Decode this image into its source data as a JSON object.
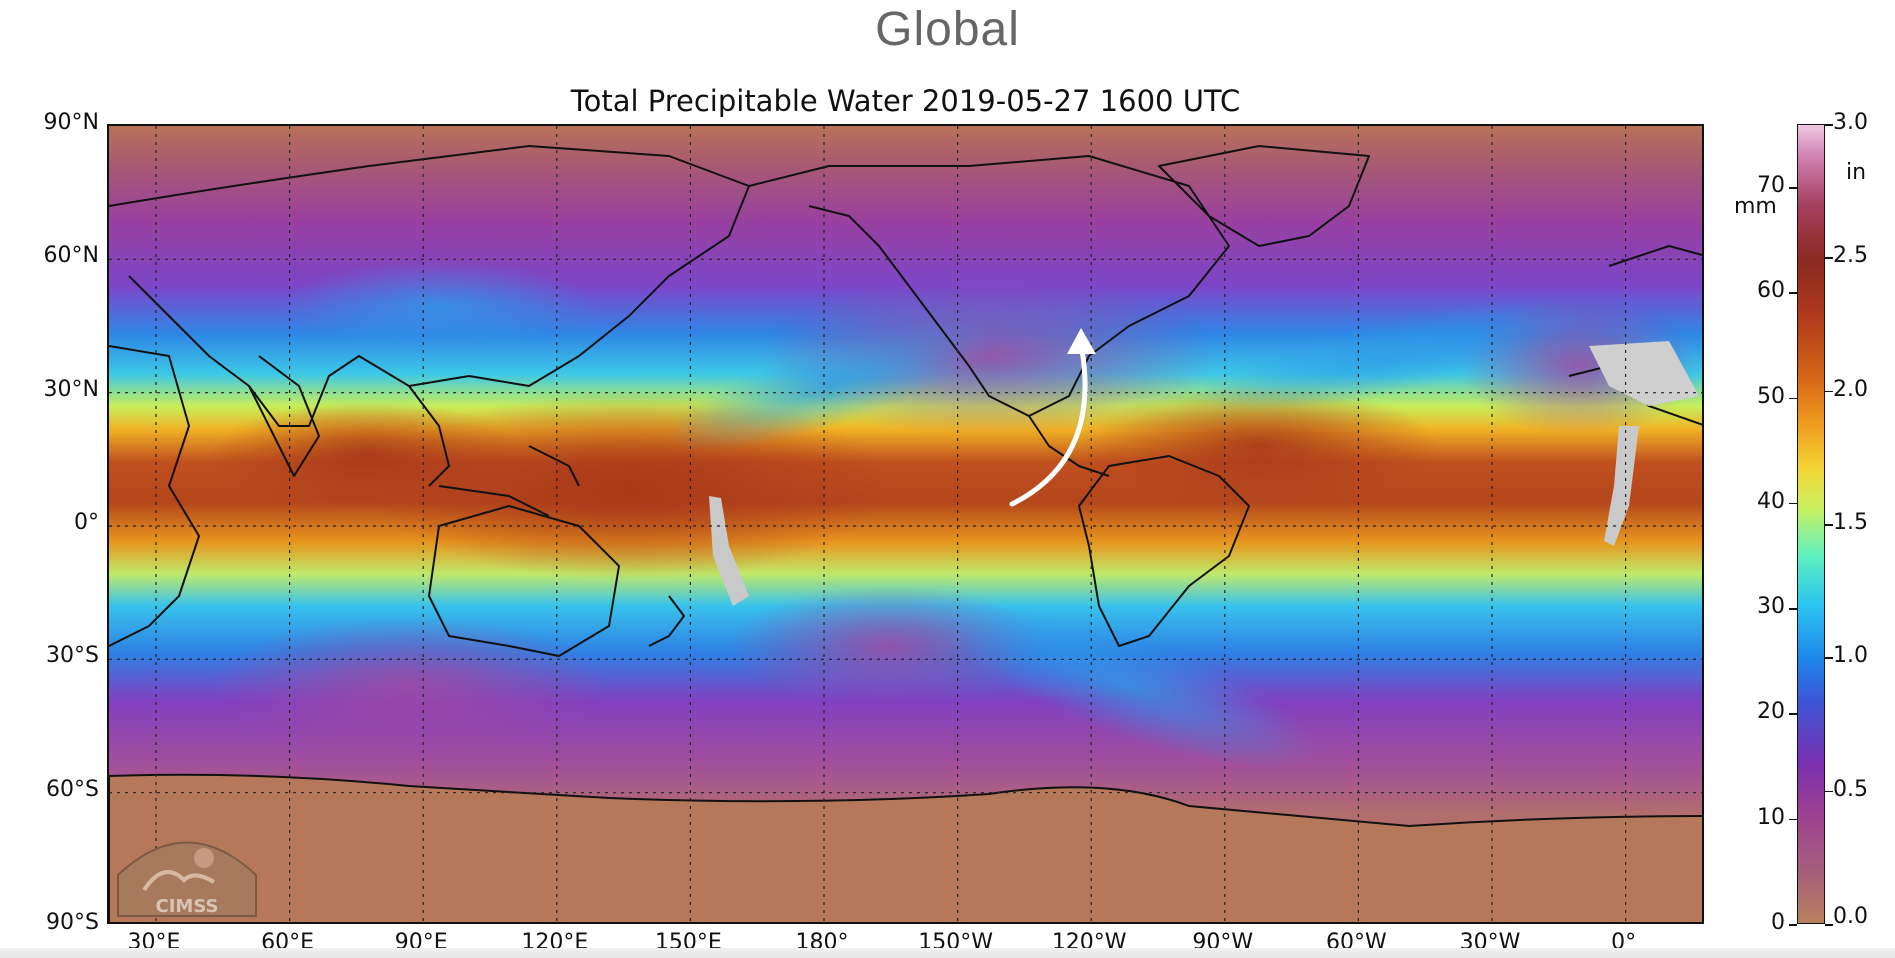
{
  "header": {
    "section_title": "Global"
  },
  "plot": {
    "title": "Total Precipitable Water  2019-05-27 1600 UTC",
    "lat_ticks": [
      "90°N",
      "60°N",
      "30°N",
      "0°",
      "30°S",
      "60°S",
      "90°S"
    ],
    "lon_ticks": [
      "30°E",
      "60°E",
      "90°E",
      "120°E",
      "150°E",
      "180°",
      "150°W",
      "120°W",
      "90°W",
      "60°W",
      "30°W",
      "0°"
    ]
  },
  "colorbar": {
    "unit_mm": "mm",
    "unit_in": "in",
    "mm_ticks": [
      "70",
      "60",
      "50",
      "40",
      "30",
      "20",
      "10",
      "0"
    ],
    "in_ticks": [
      "3.0",
      "2.5",
      "2.0",
      "1.5",
      "1.0",
      "0.5",
      "0.0"
    ],
    "range_mm": [
      0,
      76
    ],
    "range_in": [
      0,
      3.0
    ]
  },
  "logo": {
    "text": "CIMSS"
  },
  "colors": {
    "land_outline": "#111111",
    "antarctica": "#b6785a",
    "moist": "#b0401c",
    "dry": "#9c3f92",
    "mid": "#2aa6f0",
    "annotation_arrow": "#ffffff"
  }
}
